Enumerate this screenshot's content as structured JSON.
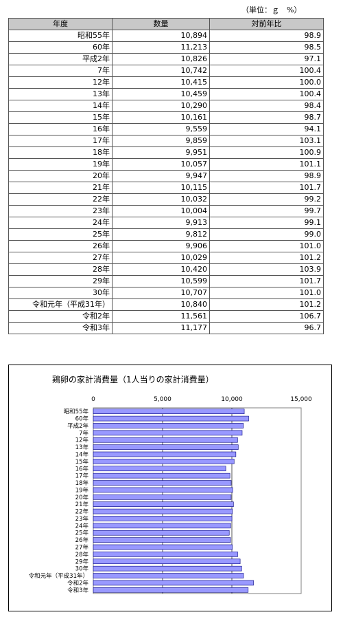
{
  "unit_label": "（単位：ｇ　%）",
  "table": {
    "headers": [
      "年度",
      "数量",
      "対前年比"
    ],
    "rows": [
      [
        "昭和55年",
        "10,894",
        "98.9"
      ],
      [
        "60年",
        "11,213",
        "98.5"
      ],
      [
        "平成2年",
        "10,826",
        "97.1"
      ],
      [
        "7年",
        "10,742",
        "100.4"
      ],
      [
        "12年",
        "10,415",
        "100.0"
      ],
      [
        "13年",
        "10,459",
        "100.4"
      ],
      [
        "14年",
        "10,290",
        "98.4"
      ],
      [
        "15年",
        "10,161",
        "98.7"
      ],
      [
        "16年",
        "9,559",
        "94.1"
      ],
      [
        "17年",
        "9,859",
        "103.1"
      ],
      [
        "18年",
        "9,951",
        "100.9"
      ],
      [
        "19年",
        "10,057",
        "101.1"
      ],
      [
        "20年",
        "9,947",
        "98.9"
      ],
      [
        "21年",
        "10,115",
        "101.7"
      ],
      [
        "22年",
        "10,032",
        "99.2"
      ],
      [
        "23年",
        "10,004",
        "99.7"
      ],
      [
        "24年",
        "9,913",
        "99.1"
      ],
      [
        "25年",
        "9,812",
        "99.0"
      ],
      [
        "26年",
        "9,906",
        "101.0"
      ],
      [
        "27年",
        "10,029",
        "101.2"
      ],
      [
        "28年",
        "10,420",
        "103.9"
      ],
      [
        "29年",
        "10,599",
        "101.7"
      ],
      [
        "30年",
        "10,707",
        "101.0"
      ],
      [
        "令和元年（平成31年）",
        "10,840",
        "101.2"
      ],
      [
        "令和2年",
        "11,561",
        "106.7"
      ],
      [
        "令和3年",
        "11,177",
        "96.7"
      ]
    ]
  },
  "chart_data": {
    "type": "bar",
    "orientation": "horizontal",
    "title": "鶏卵の家計消費量（1人当りの家計消費量）",
    "categories": [
      "昭和55年",
      "60年",
      "平成2年",
      "7年",
      "12年",
      "13年",
      "14年",
      "15年",
      "16年",
      "17年",
      "18年",
      "19年",
      "20年",
      "21年",
      "22年",
      "23年",
      "24年",
      "25年",
      "26年",
      "27年",
      "28年",
      "29年",
      "30年",
      "令和元年（平成31年）",
      "令和2年",
      "令和3年"
    ],
    "values": [
      10894,
      11213,
      10826,
      10742,
      10415,
      10459,
      10290,
      10161,
      9559,
      9859,
      9951,
      10057,
      9947,
      10115,
      10032,
      10004,
      9913,
      9812,
      9906,
      10029,
      10420,
      10599,
      10707,
      10840,
      11561,
      11177
    ],
    "xlim": [
      0,
      15000
    ],
    "ticks": [
      0,
      5000,
      10000,
      15000
    ],
    "tick_labels": [
      "0",
      "5,000",
      "10,000",
      "15,000"
    ],
    "grid": true,
    "bar_color": "#9999ff",
    "bar_edge_color": "#000080"
  }
}
